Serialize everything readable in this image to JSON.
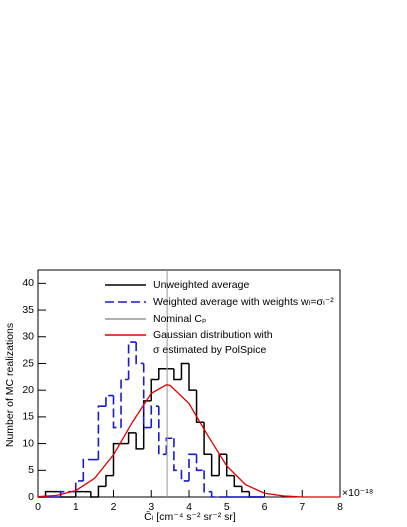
{
  "chart_data": {
    "type": "histogram",
    "xlabel": "C̄ₗ [cm⁻⁴ s⁻² sr⁻² sr]",
    "ylabel": "Number of MC realizations",
    "x_multiplier": "×10⁻¹⁸",
    "bins": [
      0,
      0.2,
      0.4,
      0.6,
      0.8,
      1.0,
      1.2,
      1.4,
      1.6,
      1.8,
      2.0,
      2.2,
      2.4,
      2.6,
      2.8,
      3.0,
      3.2,
      3.4,
      3.6,
      3.8,
      4.0,
      4.2,
      4.4,
      4.6,
      4.8,
      5.0,
      5.2,
      5.4,
      5.6,
      5.8,
      6.0
    ],
    "series": [
      {
        "name": "Unweighted average",
        "color": "#000000",
        "dashed": false,
        "values": [
          0,
          1,
          1,
          0,
          0,
          1,
          1,
          0,
          2,
          4,
          10,
          10,
          12,
          9,
          18,
          22,
          24,
          24,
          22,
          25,
          20,
          14,
          8,
          4,
          8,
          4,
          2,
          1,
          0,
          0
        ]
      },
      {
        "name": "Weighted average with weights wₗ=σₗ⁻²",
        "color": "#1a1acc",
        "dashed": true,
        "values": [
          0,
          0,
          0,
          1,
          1,
          3,
          7,
          7,
          17,
          19,
          13,
          22,
          29,
          25,
          13,
          17,
          8,
          11,
          5,
          3,
          8,
          5,
          1,
          0,
          0,
          0,
          0,
          0,
          0,
          0
        ]
      }
    ],
    "reference_line": {
      "name": "Nominal Cₚ",
      "x": 3.42,
      "color": "#999999"
    },
    "curve": {
      "name": [
        "Gaussian distribution with",
        "σ estimated by PolSpice"
      ],
      "color": "#e00000",
      "x": [
        0,
        0.5,
        1,
        1.5,
        2,
        2.5,
        3,
        3.4,
        3.5,
        4,
        4.5,
        5,
        5.5,
        6,
        6.5,
        7,
        7.5,
        8
      ],
      "values": [
        0.06,
        0.3,
        1.2,
        3.5,
        7.9,
        14,
        19.4,
        21,
        20.9,
        17.5,
        11.5,
        5.8,
        2.3,
        0.7,
        0.2,
        0,
        0,
        0
      ]
    },
    "xlim": [
      0,
      8
    ],
    "xticks": [
      0,
      1,
      2,
      3,
      4,
      5,
      6,
      7,
      8
    ],
    "ylim": [
      0,
      42.5
    ],
    "yticks": [
      0,
      5,
      10,
      15,
      20,
      25,
      30,
      35,
      40
    ]
  }
}
